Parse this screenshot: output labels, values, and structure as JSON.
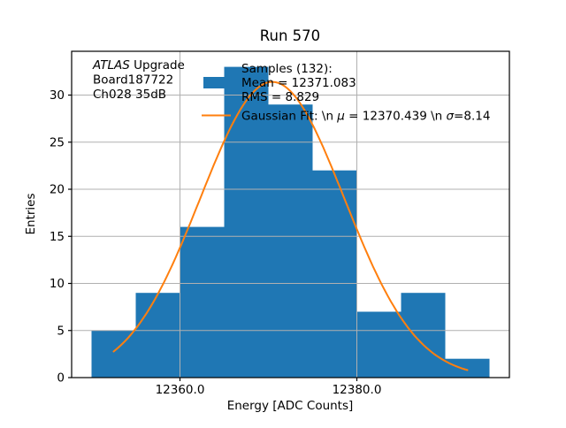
{
  "chart_data": {
    "type": "bar",
    "subtype": "histogram-with-gaussian-fit",
    "title": "Run 570",
    "xlabel": "Energy [ADC Counts]",
    "ylabel": "Entries",
    "xlim": [
      12347.75,
      12397.25
    ],
    "ylim": [
      0,
      34.65
    ],
    "grid": true,
    "legend_position": "upper-center-frameless",
    "colors": {
      "histogram": "#1f77b4",
      "fit_line": "#ff7f0e",
      "grid": "#b0b0b0",
      "text": "#000000",
      "frame": "#000000"
    },
    "xaxis": {
      "ticks": [
        {
          "v": 12360,
          "label": "12360.0"
        },
        {
          "v": 12380,
          "label": "12380.0"
        }
      ]
    },
    "yaxis": {
      "ticks": [
        {
          "v": 0,
          "label": "0"
        },
        {
          "v": 5,
          "label": "5"
        },
        {
          "v": 10,
          "label": "10"
        },
        {
          "v": 15,
          "label": "15"
        },
        {
          "v": 20,
          "label": "20"
        },
        {
          "v": 25,
          "label": "25"
        },
        {
          "v": 30,
          "label": "30"
        }
      ]
    },
    "histogram": {
      "total_samples": 132,
      "bin_start": 12350,
      "bin_width": 5,
      "bin_edges": [
        12350,
        12355,
        12360,
        12365,
        12370,
        12375,
        12380,
        12385,
        12390,
        12395
      ],
      "counts": [
        5,
        9,
        16,
        33,
        29,
        22,
        7,
        9,
        2
      ]
    },
    "gaussian_fit": {
      "amplitude": 31.4,
      "mu": 12370.439,
      "sigma": 8.14,
      "x_range": [
        12352.5,
        12392.5
      ]
    },
    "legend": {
      "samples": {
        "line1": "Samples (132):",
        "line2": " Mean = 12371.083",
        "line3": " RMS = 8.829",
        "mean": 12371.083,
        "rms": 8.829,
        "swatch_color": "#1f77b4"
      },
      "gaussian": {
        "pre": "Gaussian Fit: \\n ",
        "mu_symbol": "μ",
        "mid": " = 12370.439 \\n ",
        "sigma_symbol": "σ",
        "post": "=8.14",
        "swatch_color": "#ff7f0e"
      }
    },
    "annotation": {
      "line1_italic": "ATLAS",
      "line1_rest": " Upgrade",
      "line2": " Board187722",
      "line3": " Ch028 35dB"
    }
  }
}
